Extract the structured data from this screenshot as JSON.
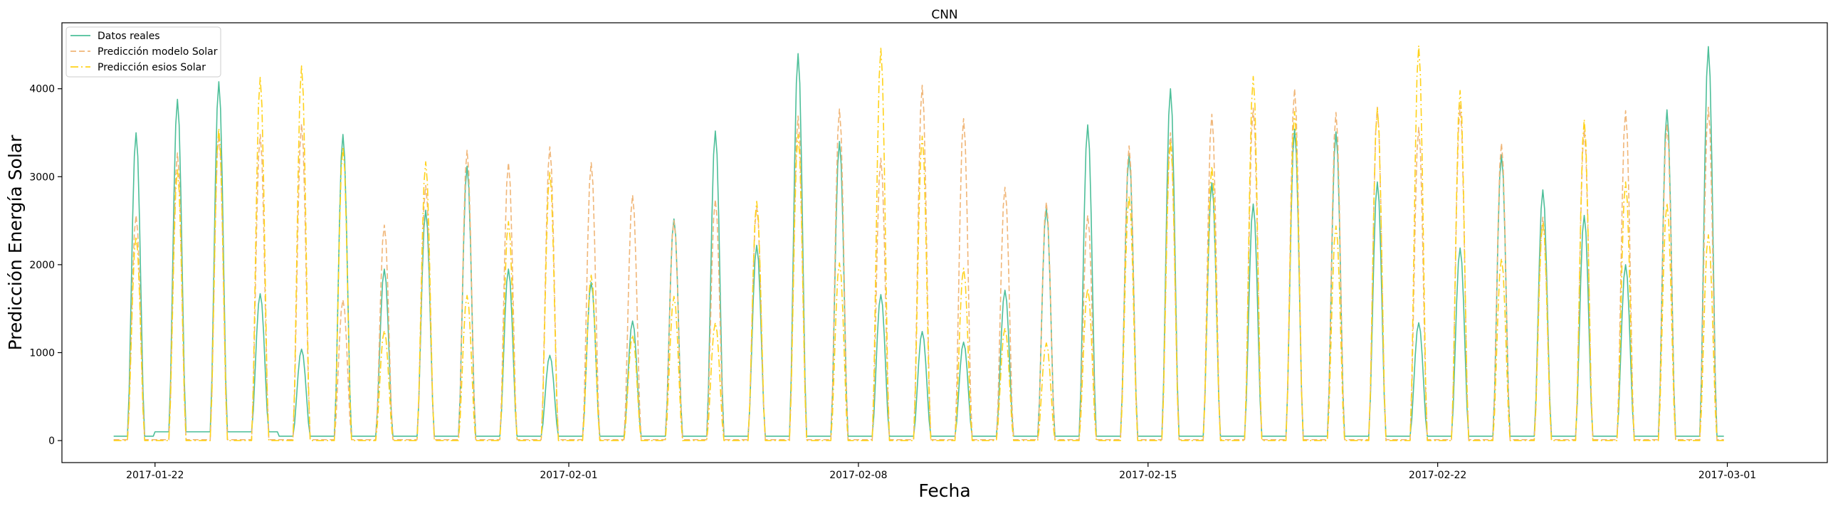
{
  "chart_data": {
    "type": "line",
    "title": "CNN",
    "xlabel": "Fecha",
    "ylabel": "Predicción Energía Solar",
    "xlim": [
      "2017-01-19T18:00",
      "2017-03-03T10:00"
    ],
    "ylim": [
      -250,
      4750
    ],
    "x_ticks": [
      "2017-01-22",
      "2017-02-01",
      "2017-02-08",
      "2017-02-15",
      "2017-02-22",
      "2017-03-01"
    ],
    "y_ticks": [
      0,
      1000,
      2000,
      3000,
      4000
    ],
    "grid": false,
    "legend_position": "top-left",
    "x_start": "2017-01-21",
    "x_end": "2017-02-28T22:00",
    "daylight_hours": {
      "rise": 8,
      "set": 18
    },
    "series": [
      {
        "name": "Datos reales",
        "color": "#4dbf99",
        "dash": "solid",
        "night_value": 50,
        "night_overrides": {
          "1": 100,
          "2": 100,
          "3": 100
        },
        "daily_peaks": [
          3500,
          3880,
          4080,
          1670,
          1040,
          3480,
          1950,
          2620,
          3120,
          1950,
          970,
          1800,
          1360,
          2520,
          3520,
          2220,
          4400,
          3400,
          1660,
          1240,
          1120,
          1710,
          2640,
          3590,
          3250,
          4000,
          2930,
          2690,
          3540,
          3510,
          2940,
          1340,
          2190,
          3250,
          2850,
          2560,
          2000,
          3760,
          4480
        ]
      },
      {
        "name": "Predicción modelo Solar",
        "color": "#f0b678",
        "dash": "dashed",
        "night_value": 10,
        "daily_peaks": [
          2560,
          3270,
          3480,
          3480,
          3600,
          1600,
          2450,
          2900,
          3300,
          3160,
          3340,
          3160,
          2790,
          2500,
          2740,
          2660,
          3690,
          3770,
          3210,
          4040,
          3660,
          2880,
          2710,
          2560,
          3350,
          3500,
          3710,
          3780,
          4000,
          3730,
          3790,
          3560,
          3810,
          3380,
          2540,
          3530,
          3750,
          3600,
          3790
        ]
      },
      {
        "name": "Predicción esios Solar",
        "color": "#ffd21a",
        "dash": "dashdot",
        "night_value": 0,
        "daily_peaks": [
          2320,
          3080,
          3550,
          4130,
          4260,
          3340,
          1250,
          3170,
          1650,
          2490,
          3050,
          1880,
          1200,
          1640,
          1340,
          2720,
          3480,
          2020,
          4460,
          3460,
          1960,
          1280,
          1110,
          1730,
          2780,
          3400,
          3120,
          4140,
          3740,
          2440,
          3780,
          4490,
          3980,
          2070,
          2480,
          3650,
          2940,
          2700,
          2340
        ]
      }
    ]
  }
}
